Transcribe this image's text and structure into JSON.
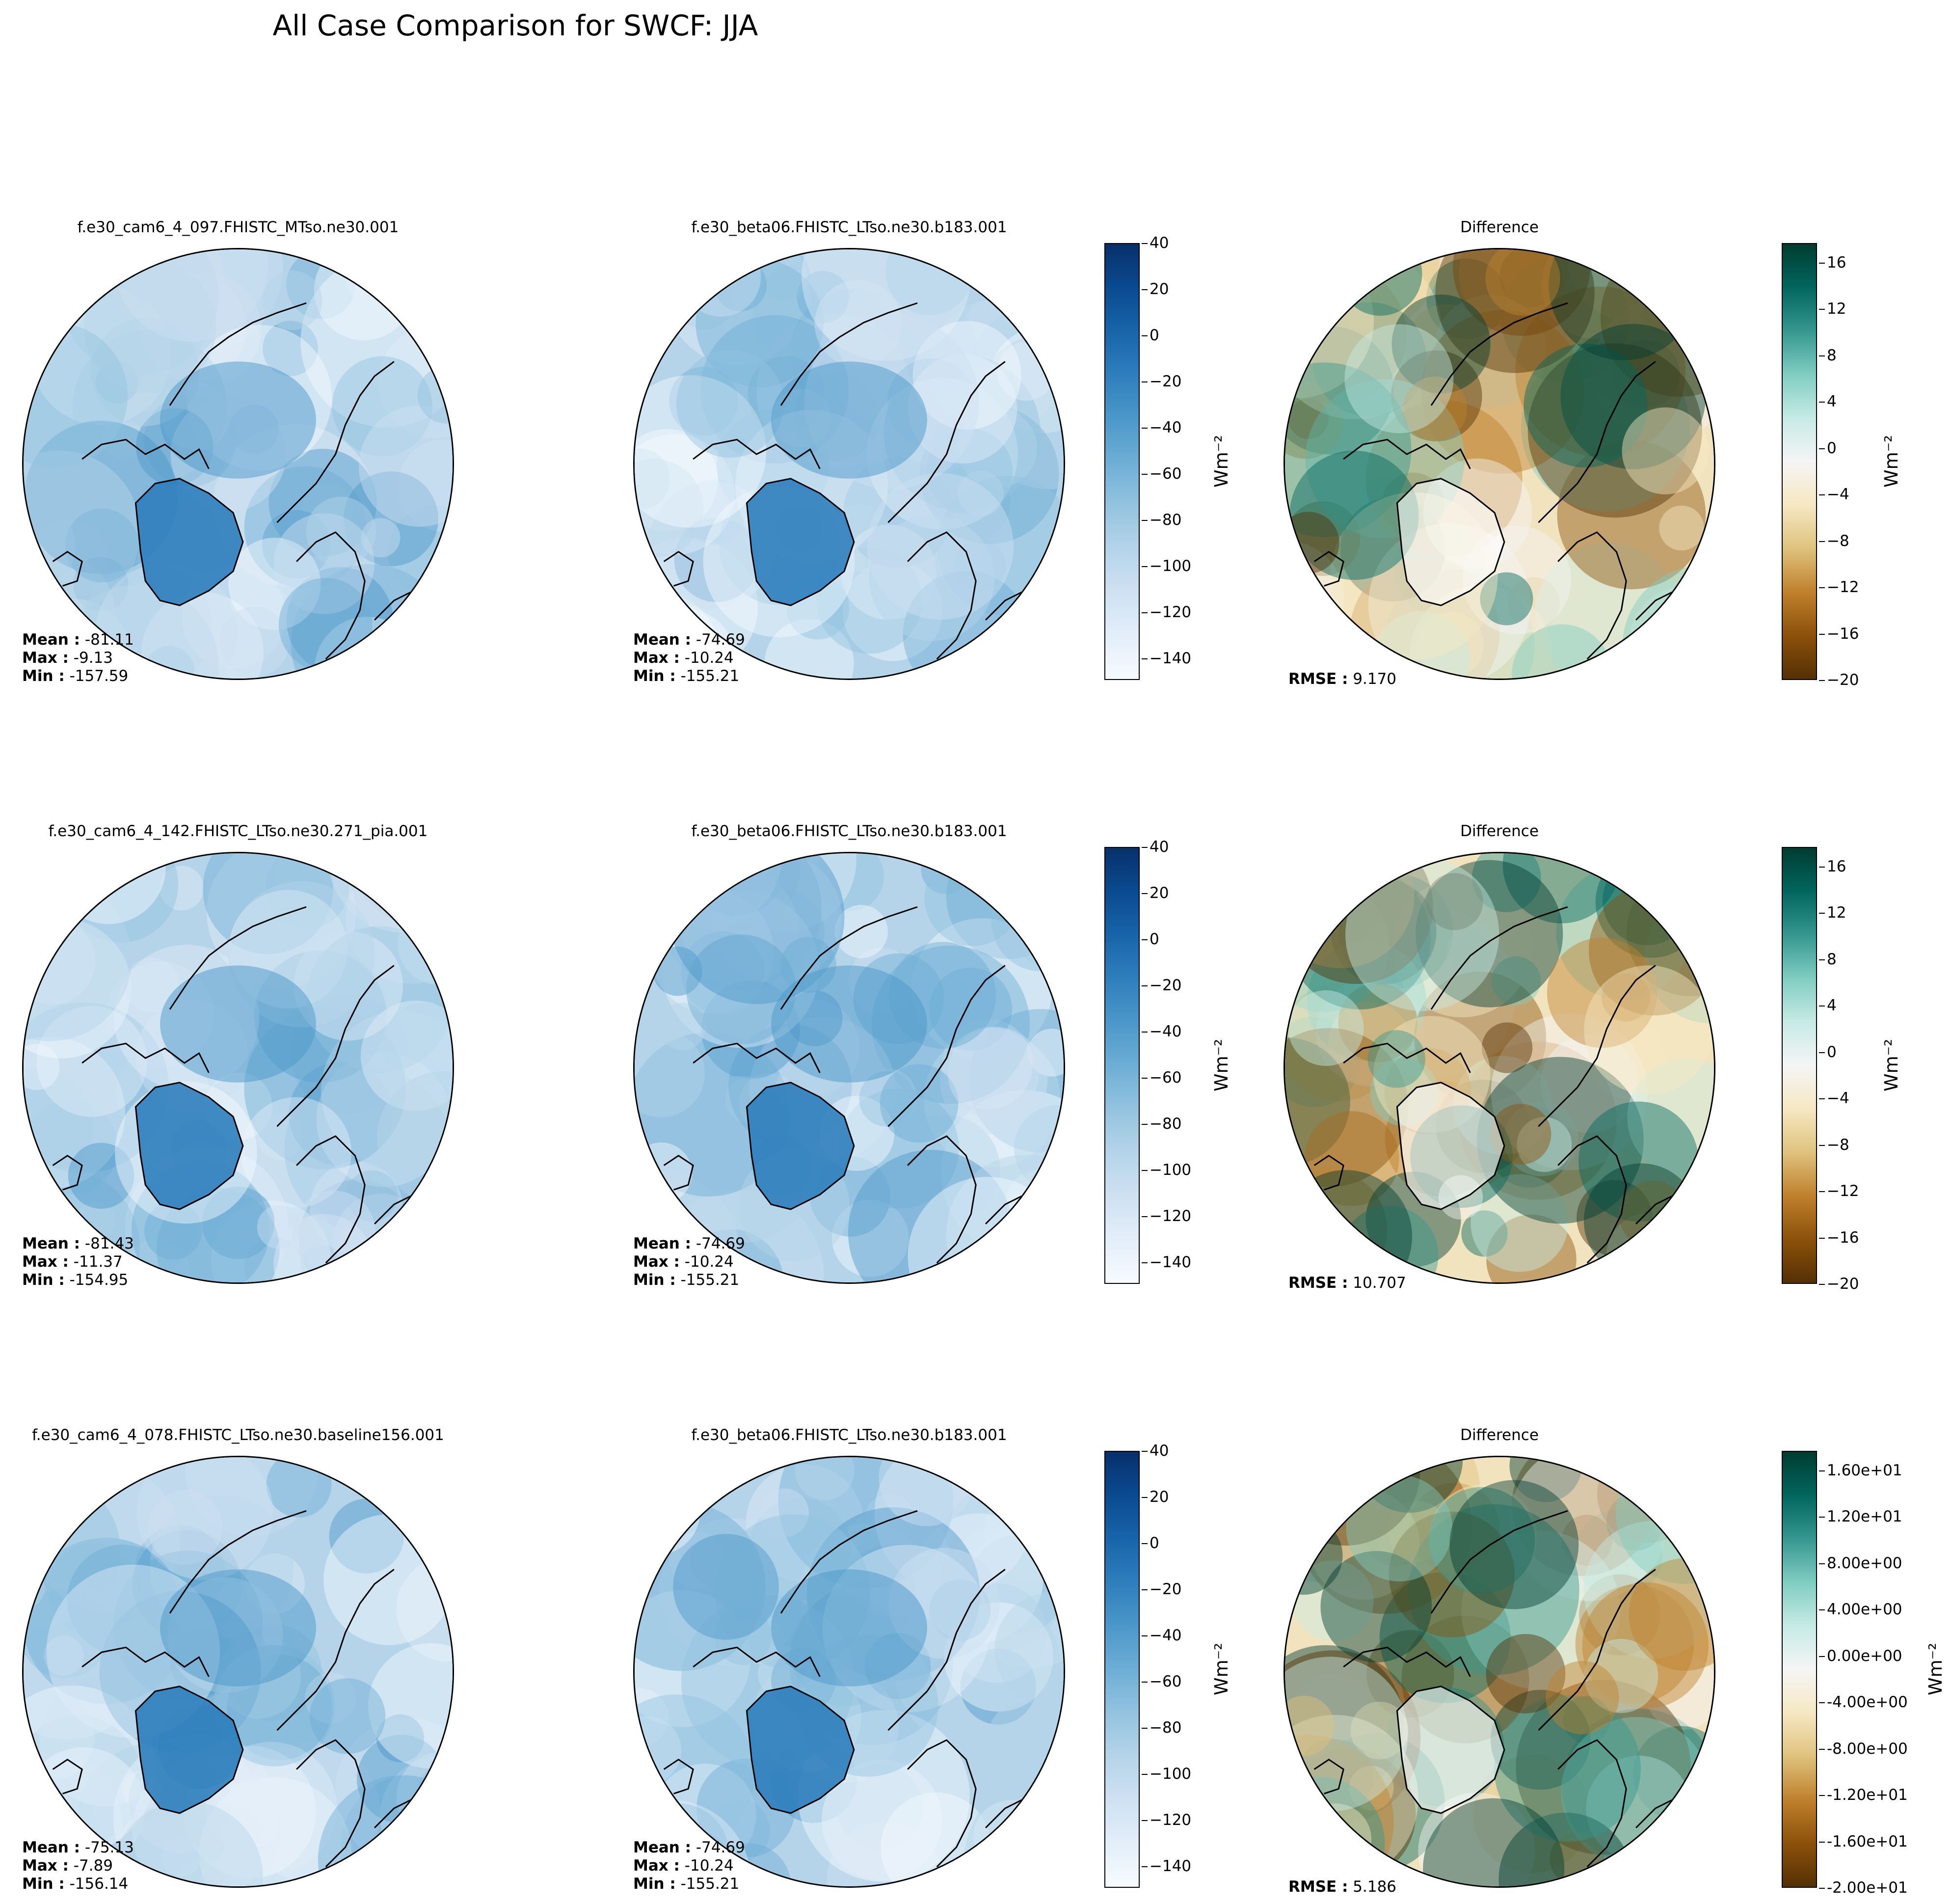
{
  "title": "All Case Comparison for SWCF: JJA",
  "units_label": "Wm⁻²",
  "stat_keys": {
    "mean": "Mean :",
    "max": "Max :",
    "min": "Min :",
    "rmse": "RMSE :"
  },
  "colors": {
    "blues": [
      "#f7fbff",
      "#e3eef9",
      "#cfe1f2",
      "#b5d4e9",
      "#93c3df",
      "#6daed5",
      "#4b97c9",
      "#2f7ebc",
      "#1864aa",
      "#0a4a90",
      "#08306b"
    ],
    "brbg": [
      "#543005",
      "#8c510a",
      "#bf812d",
      "#dfc27d",
      "#f6e8c3",
      "#f5f5f5",
      "#c7eae5",
      "#80cdc1",
      "#35978f",
      "#01665e",
      "#003c30"
    ]
  },
  "chart_data": [
    {
      "type": "heatmap",
      "projection": "north-polar-stereographic",
      "title": "f.e30_cam6_4_097.FHISTC_MTso.ne30.001",
      "stats": {
        "mean": "-81.11",
        "max": "-9.13",
        "min": "-157.59"
      }
    },
    {
      "type": "heatmap",
      "projection": "north-polar-stereographic",
      "title": "f.e30_beta06.FHISTC_LTso.ne30.b183.001",
      "stats": {
        "mean": "-74.69",
        "max": "-10.24",
        "min": "-155.21"
      },
      "colorbar": {
        "ticks": [
          "40",
          "20",
          "0",
          "−20",
          "−40",
          "−60",
          "−80",
          "−100",
          "−120",
          "−140"
        ],
        "range": [
          -150,
          40
        ]
      }
    },
    {
      "type": "heatmap",
      "projection": "north-polar-stereographic",
      "title": "Difference",
      "stats": {
        "rmse": "9.170"
      },
      "colorbar": {
        "ticks": [
          "16",
          "12",
          "8",
          "4",
          "0",
          "−4",
          "−8",
          "−12",
          "−16",
          "−20"
        ],
        "range": [
          -20,
          18
        ]
      }
    },
    {
      "type": "heatmap",
      "projection": "north-polar-stereographic",
      "title": "f.e30_cam6_4_142.FHISTC_LTso.ne30.271_pia.001",
      "stats": {
        "mean": "-81.43",
        "max": "-11.37",
        "min": "-154.95"
      }
    },
    {
      "type": "heatmap",
      "projection": "north-polar-stereographic",
      "title": "f.e30_beta06.FHISTC_LTso.ne30.b183.001",
      "stats": {
        "mean": "-74.69",
        "max": "-10.24",
        "min": "-155.21"
      },
      "colorbar": {
        "ticks": [
          "40",
          "20",
          "0",
          "−20",
          "−40",
          "−60",
          "−80",
          "−100",
          "−120",
          "−140"
        ],
        "range": [
          -150,
          40
        ]
      }
    },
    {
      "type": "heatmap",
      "projection": "north-polar-stereographic",
      "title": "Difference",
      "stats": {
        "rmse": "10.707"
      },
      "colorbar": {
        "ticks": [
          "16",
          "12",
          "8",
          "4",
          "0",
          "−4",
          "−8",
          "−12",
          "−16",
          "−20"
        ],
        "range": [
          -20,
          18
        ]
      }
    },
    {
      "type": "heatmap",
      "projection": "north-polar-stereographic",
      "title": "f.e30_cam6_4_078.FHISTC_LTso.ne30.baseline156.001",
      "stats": {
        "mean": "-75.13",
        "max": "-7.89",
        "min": "-156.14"
      }
    },
    {
      "type": "heatmap",
      "projection": "north-polar-stereographic",
      "title": "f.e30_beta06.FHISTC_LTso.ne30.b183.001",
      "stats": {
        "mean": "-74.69",
        "max": "-10.24",
        "min": "-155.21"
      },
      "colorbar": {
        "ticks": [
          "40",
          "20",
          "0",
          "−20",
          "−40",
          "−60",
          "−80",
          "−100",
          "−120",
          "−140"
        ],
        "range": [
          -150,
          40
        ]
      }
    },
    {
      "type": "heatmap",
      "projection": "north-polar-stereographic",
      "title": "Difference",
      "stats": {
        "rmse": "5.186"
      },
      "colorbar": {
        "ticks": [
          "1.60e+01",
          "1.20e+01",
          "8.00e+00",
          "4.00e+00",
          "0.00e+00",
          "-4.00e+00",
          "-8.00e+00",
          "-1.20e+01",
          "-1.60e+01",
          "-2.00e+01"
        ],
        "range": [
          -20,
          18
        ]
      }
    }
  ]
}
